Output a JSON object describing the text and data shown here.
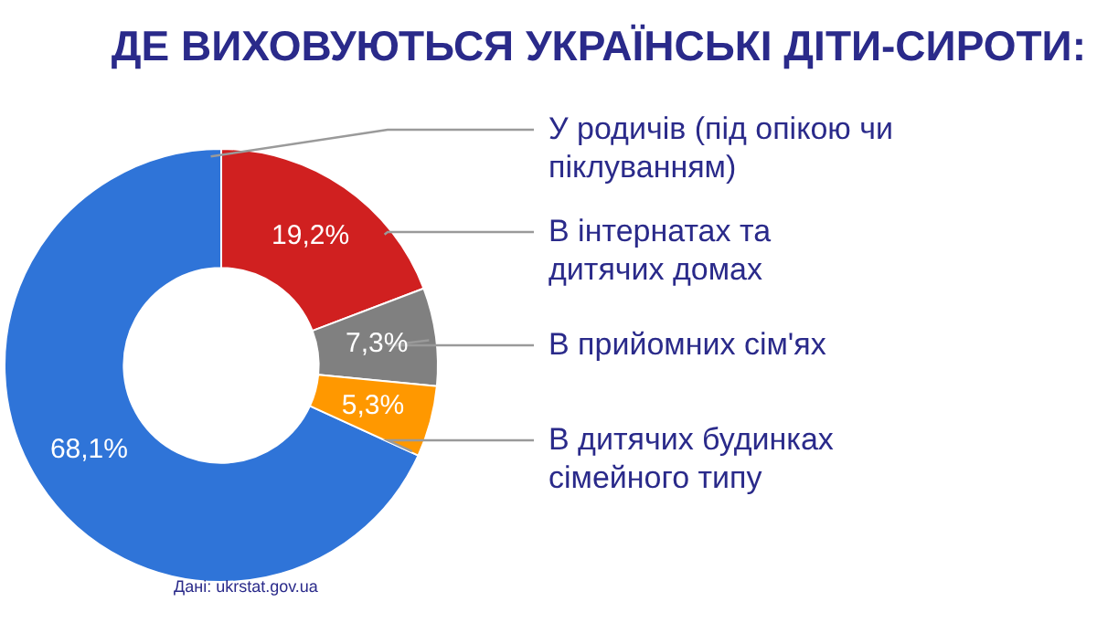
{
  "chart_data": {
    "type": "donut",
    "title": "ДЕ ВИХОВУЮТЬСЯ УКРАЇНСЬКІ ДІТИ-СИРОТИ:",
    "categories": [
      "У родичів (під опікою чи піклуванням)",
      "В інтернатах та дитячих домах",
      "В прийомних сім'ях",
      "В дитячих будинках сімейного типу"
    ],
    "values": [
      68.1,
      19.2,
      7.3,
      5.3
    ],
    "colors": [
      "#2f74d8",
      "#d02020",
      "#808080",
      "#ff9800"
    ],
    "value_labels": [
      "68,1%",
      "19,2%",
      "7,3%",
      "5,3%"
    ],
    "annotations": [
      "Дані: ukrstat.gov.ua"
    ],
    "legend": false
  }
}
